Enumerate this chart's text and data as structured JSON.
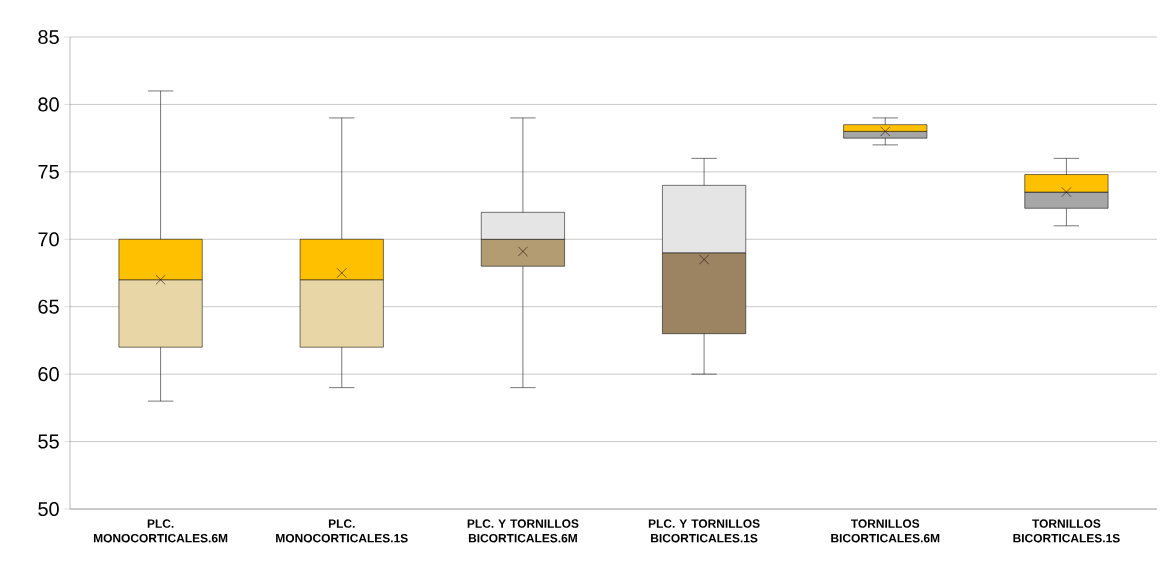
{
  "chart_data": {
    "type": "box",
    "categories": [
      "PLC. MONOCORTICALES.6M",
      "PLC. MONOCORTICALES.1S",
      "PLC. Y TORNILLOS BICORTICALES.6M",
      "PLC. Y TORNILLOS BICORTICALES.1S",
      "TORNILLOS BICORTICALES.6M",
      "TORNILLOS BICORTICALES.1S"
    ],
    "boxes": [
      {
        "low": 58,
        "q1": 62,
        "median": 67,
        "q3": 70,
        "high": 81,
        "mean": 67
      },
      {
        "low": 59,
        "q1": 62,
        "median": 67,
        "q3": 70,
        "high": 79,
        "mean": 67.5
      },
      {
        "low": 59,
        "q1": 68,
        "median": 70,
        "q3": 72,
        "high": 79,
        "mean": 69.1
      },
      {
        "low": 60,
        "q1": 63,
        "median": 69,
        "q3": 74,
        "high": 76,
        "mean": 68.5
      },
      {
        "low": 77,
        "q1": 77.5,
        "median": 78,
        "q3": 78.5,
        "high": 79,
        "mean": 78
      },
      {
        "low": 71,
        "q1": 72.3,
        "median": 73.5,
        "q3": 74.8,
        "high": 76,
        "mean": 73.5
      }
    ],
    "colors": [
      [
        "#ffc000",
        "#e8d6a6"
      ],
      [
        "#ffc000",
        "#e8d6a6"
      ],
      [
        "#e5e5e5",
        "#b39c72"
      ],
      [
        "#e5e5e5",
        "#9c8462"
      ],
      [
        "#ffc000",
        "#a6a6a6"
      ],
      [
        "#ffc000",
        "#a6a6a6"
      ]
    ],
    "ylim": [
      50,
      85
    ],
    "yticks": [
      50,
      55,
      60,
      65,
      70,
      75,
      80,
      85
    ],
    "grid": "y",
    "marker": "cross"
  }
}
